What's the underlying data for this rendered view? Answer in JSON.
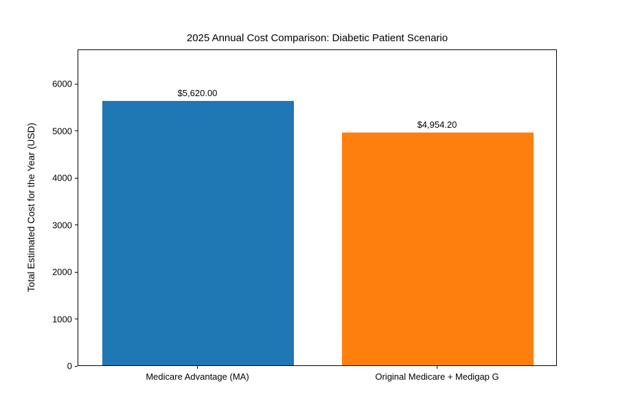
{
  "chart_data": {
    "type": "bar",
    "title": "2025 Annual Cost Comparison: Diabetic Patient Scenario",
    "categories": [
      "Medicare Advantage (MA)",
      "Original Medicare + Medigap G"
    ],
    "values": [
      5620,
      4954.2
    ],
    "value_labels": [
      "$5,620.00",
      "$4,954.20"
    ],
    "bar_colors": [
      "#1f77b4",
      "#ff7f0e"
    ],
    "xlabel": "",
    "ylabel": "Total Estimated Cost for the Year (USD)",
    "ylim": [
      0,
      6730
    ],
    "yticks": [
      0,
      1000,
      2000,
      3000,
      4000,
      5000,
      6000
    ],
    "bar_width_fraction": 0.8,
    "grid": false,
    "legend": "none",
    "background_color": "#ffffff",
    "text_color": "#000000"
  }
}
